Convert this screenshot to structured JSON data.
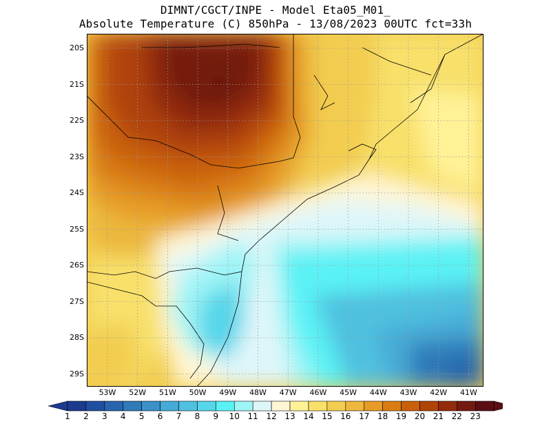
{
  "header": {
    "line1": "DIMNT/CGCT/INPE -  Model Eta05_M01_",
    "line2": "Absolute Temperature (C) 850hPa -  13/08/2023 00UTC fct=33h"
  },
  "map": {
    "lat_labels": [
      "20S",
      "21S",
      "22S",
      "23S",
      "24S",
      "25S",
      "26S",
      "27S",
      "28S",
      "29S"
    ],
    "lon_labels": [
      "53W",
      "52W",
      "51W",
      "50W",
      "49W",
      "48W",
      "47W",
      "46W",
      "45W",
      "44W",
      "43W",
      "42W",
      "41W"
    ],
    "grid": "dotted"
  },
  "colorbar": {
    "labels": [
      "1",
      "2",
      "3",
      "4",
      "5",
      "6",
      "7",
      "8",
      "9",
      "10",
      "11",
      "12",
      "13",
      "14",
      "15",
      "16",
      "17",
      "18",
      "19",
      "20",
      "21",
      "22",
      "23"
    ],
    "colors": [
      "#1c3b8f",
      "#1f4fa0",
      "#2764ad",
      "#2f7ab8",
      "#3a92c8",
      "#46aad6",
      "#50c1e0",
      "#56d6ea",
      "#5af2f5",
      "#9ff4f6",
      "#dff6f9",
      "#fff6d6",
      "#fff296",
      "#f8e06a",
      "#f2cd50",
      "#ecb83e",
      "#e69c26",
      "#d97d12",
      "#c9600a",
      "#b04308",
      "#922c0a",
      "#741a10",
      "#5a0e14"
    ]
  }
}
